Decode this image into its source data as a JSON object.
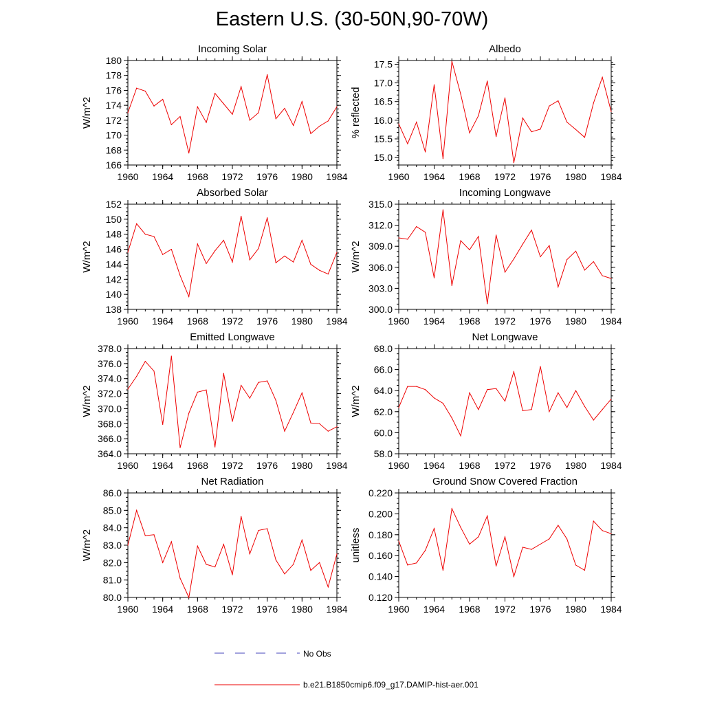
{
  "title": "Eastern U.S. (30-50N,90-70W)",
  "legend": {
    "obs_label": "No Obs",
    "model_label": "b.e21.B1850cmip6.f09_g17.DAMIP-hist-aer.001",
    "obs_color": "#4444bb",
    "model_color": "#ee0000"
  },
  "chart_data": [
    {
      "type": "line",
      "title": "Incoming Solar",
      "ylabel": "W/m^2",
      "xlim": [
        1960,
        1984
      ],
      "ylim": [
        166,
        180
      ],
      "xticks": [
        1960,
        1964,
        1968,
        1972,
        1976,
        1980,
        1984
      ],
      "yticks": [
        "166",
        "168",
        "170",
        "172",
        "174",
        "176",
        "178",
        "180"
      ],
      "x": [
        1960,
        1961,
        1962,
        1963,
        1964,
        1965,
        1966,
        1967,
        1968,
        1969,
        1970,
        1971,
        1972,
        1973,
        1974,
        1975,
        1976,
        1977,
        1978,
        1979,
        1980,
        1981,
        1982,
        1983,
        1984
      ],
      "series": [
        {
          "values": [
            173.0,
            176.3,
            175.9,
            173.9,
            174.8,
            171.4,
            172.5,
            167.6,
            173.8,
            171.7,
            175.6,
            174.2,
            172.8,
            176.5,
            172.0,
            173.0,
            178.1,
            172.2,
            173.6,
            171.3,
            174.5,
            170.2,
            171.2,
            171.9,
            173.8
          ]
        }
      ]
    },
    {
      "type": "line",
      "title": "Albedo",
      "ylabel": "% reflected",
      "xlim": [
        1960,
        1984
      ],
      "ylim": [
        14.8,
        17.6
      ],
      "xticks": [
        1960,
        1964,
        1968,
        1972,
        1976,
        1980,
        1984
      ],
      "yticks": [
        "15.0",
        "15.5",
        "16.0",
        "16.5",
        "17.0",
        "17.5"
      ],
      "x": [
        1960,
        1961,
        1962,
        1963,
        1964,
        1965,
        1966,
        1967,
        1968,
        1969,
        1970,
        1971,
        1972,
        1973,
        1974,
        1975,
        1976,
        1977,
        1978,
        1979,
        1980,
        1981,
        1982,
        1983,
        1984
      ],
      "series": [
        {
          "values": [
            15.9,
            15.37,
            15.95,
            15.15,
            16.95,
            14.97,
            17.58,
            16.7,
            15.66,
            16.12,
            17.05,
            15.56,
            16.6,
            14.86,
            16.06,
            15.69,
            15.76,
            16.38,
            16.52,
            15.95,
            15.75,
            15.54,
            16.46,
            17.15,
            16.23
          ]
        }
      ]
    },
    {
      "type": "line",
      "title": "Absorbed Solar",
      "ylabel": "W/m^2",
      "xlim": [
        1960,
        1984
      ],
      "ylim": [
        138,
        152
      ],
      "xticks": [
        1960,
        1964,
        1968,
        1972,
        1976,
        1980,
        1984
      ],
      "yticks": [
        "138",
        "140",
        "142",
        "144",
        "146",
        "148",
        "150",
        "152"
      ],
      "x": [
        1960,
        1961,
        1962,
        1963,
        1964,
        1965,
        1966,
        1967,
        1968,
        1969,
        1970,
        1971,
        1972,
        1973,
        1974,
        1975,
        1976,
        1977,
        1978,
        1979,
        1980,
        1981,
        1982,
        1983,
        1984
      ],
      "series": [
        {
          "values": [
            145.6,
            149.4,
            148.0,
            147.7,
            145.3,
            146.0,
            142.5,
            139.7,
            146.7,
            144.1,
            145.8,
            147.2,
            144.3,
            150.4,
            144.6,
            146.1,
            150.2,
            144.2,
            145.1,
            144.3,
            147.2,
            144.0,
            143.2,
            142.7,
            145.6
          ]
        }
      ]
    },
    {
      "type": "line",
      "title": "Incoming Longwave",
      "ylabel": "W/m^2",
      "xlim": [
        1960,
        1984
      ],
      "ylim": [
        300,
        315
      ],
      "xticks": [
        1960,
        1964,
        1968,
        1972,
        1976,
        1980,
        1984
      ],
      "yticks": [
        "300.0",
        "303.0",
        "306.0",
        "309.0",
        "312.0",
        "315.0"
      ],
      "x": [
        1960,
        1961,
        1962,
        1963,
        1964,
        1965,
        1966,
        1967,
        1968,
        1969,
        1970,
        1971,
        1972,
        1973,
        1974,
        1975,
        1976,
        1977,
        1978,
        1979,
        1980,
        1981,
        1982,
        1983,
        1984
      ],
      "series": [
        {
          "values": [
            310.2,
            310.0,
            311.8,
            311.0,
            304.5,
            314.2,
            303.4,
            309.8,
            308.5,
            310.4,
            300.8,
            310.6,
            305.3,
            307.2,
            309.3,
            311.3,
            307.5,
            309.1,
            303.2,
            307.1,
            308.3,
            305.6,
            306.8,
            304.8,
            304.4
          ]
        }
      ]
    },
    {
      "type": "line",
      "title": "Emitted Longwave",
      "ylabel": "W/m^2",
      "xlim": [
        1960,
        1984
      ],
      "ylim": [
        364,
        378
      ],
      "xticks": [
        1960,
        1964,
        1968,
        1972,
        1976,
        1980,
        1984
      ],
      "yticks": [
        "364.0",
        "366.0",
        "368.0",
        "370.0",
        "372.0",
        "374.0",
        "376.0",
        "378.0"
      ],
      "x": [
        1960,
        1961,
        1962,
        1963,
        1964,
        1965,
        1966,
        1967,
        1968,
        1969,
        1970,
        1971,
        1972,
        1973,
        1974,
        1975,
        1976,
        1977,
        1978,
        1979,
        1980,
        1981,
        1982,
        1983,
        1984
      ],
      "series": [
        {
          "values": [
            372.6,
            374.3,
            376.3,
            375.0,
            367.9,
            377.0,
            364.8,
            369.4,
            372.2,
            372.5,
            364.9,
            374.7,
            368.3,
            373.1,
            371.4,
            373.5,
            373.7,
            371.1,
            367.0,
            369.5,
            372.1,
            368.1,
            368.0,
            367.0,
            367.6
          ]
        }
      ]
    },
    {
      "type": "line",
      "title": "Net Longwave",
      "ylabel": "W/m^2",
      "xlim": [
        1960,
        1984
      ],
      "ylim": [
        58,
        68
      ],
      "xticks": [
        1960,
        1964,
        1968,
        1972,
        1976,
        1980,
        1984
      ],
      "yticks": [
        "58.0",
        "60.0",
        "62.0",
        "64.0",
        "66.0",
        "68.0"
      ],
      "x": [
        1960,
        1961,
        1962,
        1963,
        1964,
        1965,
        1966,
        1967,
        1968,
        1969,
        1970,
        1971,
        1972,
        1973,
        1974,
        1975,
        1976,
        1977,
        1978,
        1979,
        1980,
        1981,
        1982,
        1983,
        1984
      ],
      "series": [
        {
          "values": [
            62.4,
            64.4,
            64.4,
            64.1,
            63.3,
            62.8,
            61.4,
            59.7,
            63.8,
            62.2,
            64.1,
            64.2,
            63.0,
            65.8,
            62.1,
            62.2,
            66.3,
            62.0,
            63.8,
            62.4,
            64.0,
            62.5,
            61.2,
            62.2,
            63.2
          ]
        }
      ]
    },
    {
      "type": "line",
      "title": "Net Radiation",
      "ylabel": "W/m^2",
      "xlim": [
        1960,
        1984
      ],
      "ylim": [
        80,
        86
      ],
      "xticks": [
        1960,
        1964,
        1968,
        1972,
        1976,
        1980,
        1984
      ],
      "yticks": [
        "80.0",
        "81.0",
        "82.0",
        "83.0",
        "84.0",
        "85.0",
        "86.0"
      ],
      "x": [
        1960,
        1961,
        1962,
        1963,
        1964,
        1965,
        1966,
        1967,
        1968,
        1969,
        1970,
        1971,
        1972,
        1973,
        1974,
        1975,
        1976,
        1977,
        1978,
        1979,
        1980,
        1981,
        1982,
        1983,
        1984
      ],
      "series": [
        {
          "values": [
            83.0,
            85.0,
            83.55,
            83.6,
            82.0,
            83.2,
            81.1,
            80.0,
            82.95,
            81.9,
            81.75,
            83.05,
            81.3,
            84.65,
            82.5,
            83.85,
            83.95,
            82.15,
            81.35,
            81.9,
            83.3,
            81.55,
            82.0,
            80.6,
            82.5
          ]
        }
      ]
    },
    {
      "type": "line",
      "title": "Ground Snow Covered Fraction",
      "ylabel": "unitless",
      "xlim": [
        1960,
        1984
      ],
      "ylim": [
        0.12,
        0.22
      ],
      "xticks": [
        1960,
        1964,
        1968,
        1972,
        1976,
        1980,
        1984
      ],
      "yticks": [
        "0.120",
        "0.140",
        "0.160",
        "0.180",
        "0.200",
        "0.220"
      ],
      "x": [
        1960,
        1961,
        1962,
        1963,
        1964,
        1965,
        1966,
        1967,
        1968,
        1969,
        1970,
        1971,
        1972,
        1973,
        1974,
        1975,
        1976,
        1977,
        1978,
        1979,
        1980,
        1981,
        1982,
        1983,
        1984
      ],
      "series": [
        {
          "values": [
            0.174,
            0.151,
            0.153,
            0.165,
            0.186,
            0.146,
            0.205,
            0.187,
            0.171,
            0.178,
            0.198,
            0.15,
            0.178,
            0.14,
            0.168,
            0.166,
            0.171,
            0.176,
            0.189,
            0.176,
            0.151,
            0.146,
            0.193,
            0.184,
            0.181
          ]
        }
      ]
    }
  ]
}
